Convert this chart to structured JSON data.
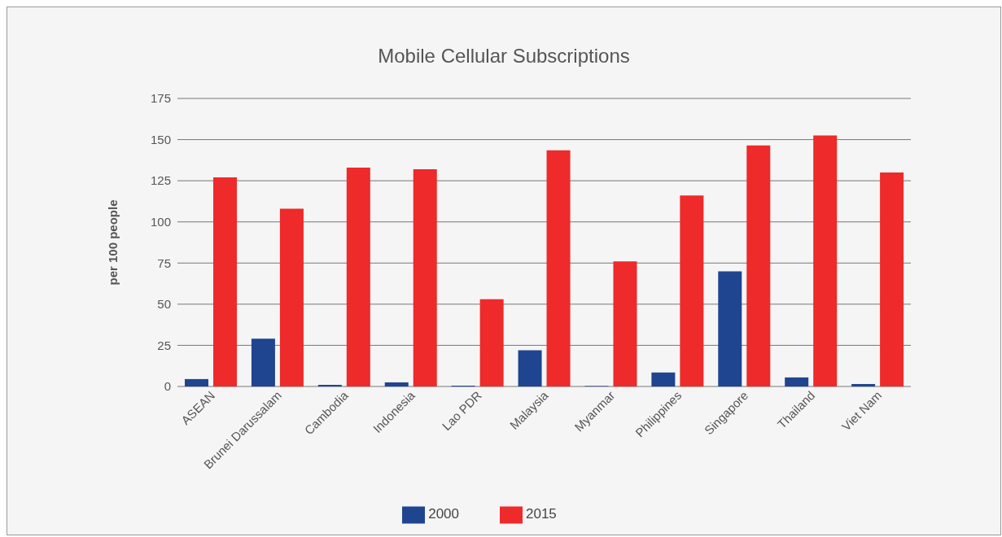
{
  "chart_data": {
    "type": "bar",
    "title": "Mobile Cellular Subscriptions",
    "ylabel": "per 100 people",
    "categories": [
      "ASEAN",
      "Brunei Darussalam",
      "Cambodia",
      "Indonesia",
      "Lao PDR",
      "Malaysia",
      "Myanmar",
      "Philippines",
      "Singapore",
      "Thailand",
      "Viet Nam"
    ],
    "series": [
      {
        "name": "2000",
        "color": "#1f4590",
        "values": [
          4.5,
          29,
          1,
          2.5,
          0.5,
          22,
          0.3,
          8.5,
          70,
          5.5,
          1.5
        ]
      },
      {
        "name": "2015",
        "color": "#ee2a2a",
        "values": [
          127,
          108,
          133,
          132,
          53,
          143.5,
          76,
          116,
          146.5,
          152.5,
          130
        ]
      }
    ],
    "ylim": [
      0,
      175
    ],
    "yticks": [
      0,
      25,
      50,
      75,
      100,
      125,
      150,
      175
    ],
    "grid": "y",
    "legend": "bottom"
  }
}
